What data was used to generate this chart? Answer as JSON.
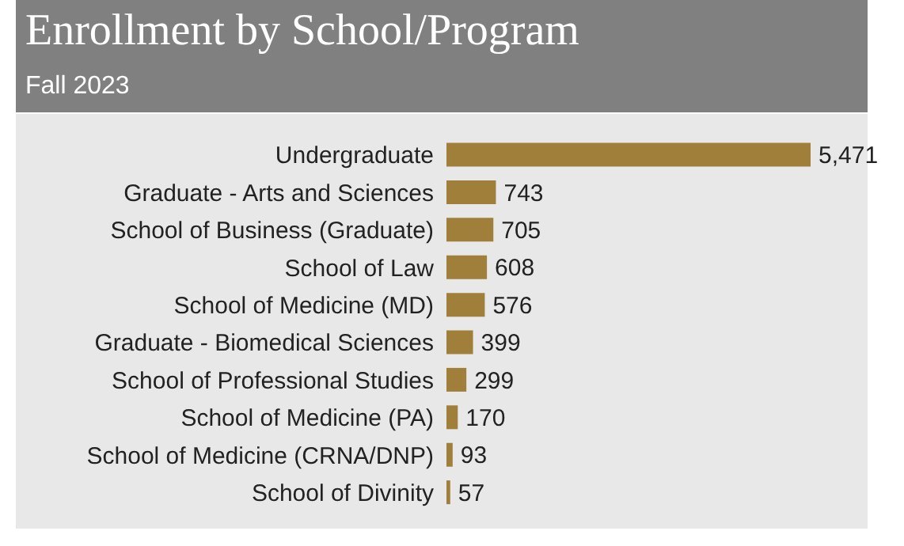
{
  "chart_data": {
    "type": "bar",
    "title": "Enrollment by School/Program",
    "subtitle": "Fall 2023",
    "orientation": "horizontal",
    "grid": false,
    "legend": false,
    "categories": [
      "Undergraduate",
      "Graduate - Arts and Sciences",
      "School of Business (Graduate)",
      "School of Law",
      "School of Medicine (MD)",
      "Graduate - Biomedical Sciences",
      "School of Professional Studies",
      "School of Medicine (PA)",
      "School of Medicine (CRNA/DNP)",
      "School of Divinity"
    ],
    "values": [
      5471,
      743,
      705,
      608,
      576,
      399,
      299,
      170,
      93,
      57
    ],
    "value_labels": [
      "5,471",
      "743",
      "705",
      "608",
      "576",
      "399",
      "299",
      "170",
      "93",
      "57"
    ],
    "color": "#a07f3a"
  }
}
